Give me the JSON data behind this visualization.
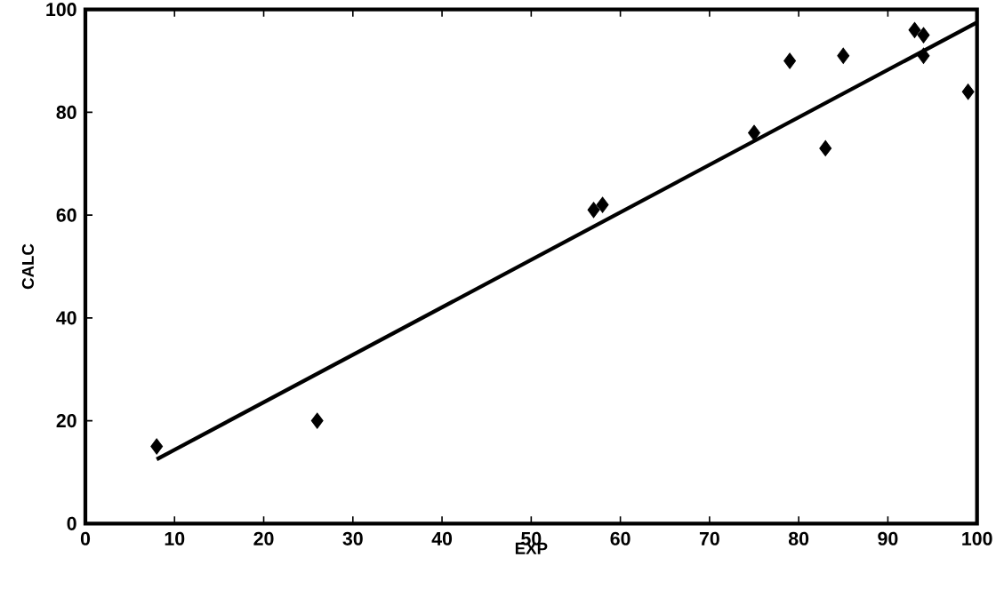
{
  "chart_data": {
    "type": "scatter",
    "xlabel": "EXP",
    "ylabel": "CALC",
    "xlim": [
      0,
      100
    ],
    "ylim": [
      0,
      100
    ],
    "xticks": [
      0,
      10,
      20,
      30,
      40,
      50,
      60,
      70,
      80,
      90,
      100
    ],
    "yticks": [
      0,
      20,
      40,
      60,
      80,
      100
    ],
    "series": [
      {
        "color": "#000000",
        "marker": "diamond",
        "x": [
          8,
          26,
          57,
          58,
          75,
          79,
          83,
          85,
          93,
          94,
          94,
          99
        ],
        "values": [
          15,
          20,
          61,
          62,
          76,
          90,
          73,
          91,
          96,
          95,
          91,
          84
        ]
      },
      {
        "type": "line",
        "marker": "none",
        "color": "#000000",
        "x": [
          8,
          100
        ],
        "values": [
          12.5,
          97.5
        ]
      }
    ]
  }
}
